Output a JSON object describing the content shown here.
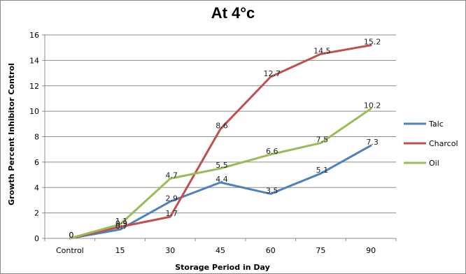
{
  "chart_data": {
    "type": "line",
    "title": "At 4°c",
    "xlabel": "Storage Period in Day",
    "ylabel": "Growth Percent Inhibitor Control",
    "categories": [
      "Control",
      "15",
      "30",
      "45",
      "60",
      "75",
      "90"
    ],
    "ylim": [
      0,
      16
    ],
    "yticks": [
      0,
      2,
      4,
      6,
      8,
      10,
      12,
      14,
      16
    ],
    "grid": true,
    "legend_position": "right",
    "series": [
      {
        "name": "Talc",
        "color": "#4f81bd",
        "values": [
          0,
          0.7,
          2.9,
          4.4,
          3.5,
          5.1,
          7.3
        ],
        "labels": [
          "0",
          "0.7",
          "2.9",
          "4.4",
          "3.5",
          "5.1",
          "7.3"
        ]
      },
      {
        "name": "Charcol",
        "color": "#c0504d",
        "values": [
          0,
          0.9,
          1.7,
          8.6,
          12.7,
          14.5,
          15.2
        ],
        "labels": [
          "0",
          "0.9",
          "1.7",
          "8.6",
          "12.7",
          "14.5",
          "15.2"
        ]
      },
      {
        "name": "Oil",
        "color": "#9bbb59",
        "values": [
          0,
          1.1,
          4.7,
          5.5,
          6.6,
          7.5,
          10.2
        ],
        "labels": [
          "0",
          "1.1",
          "4.7",
          "5.5",
          "6.6",
          "7.5",
          "10.2"
        ]
      }
    ]
  }
}
